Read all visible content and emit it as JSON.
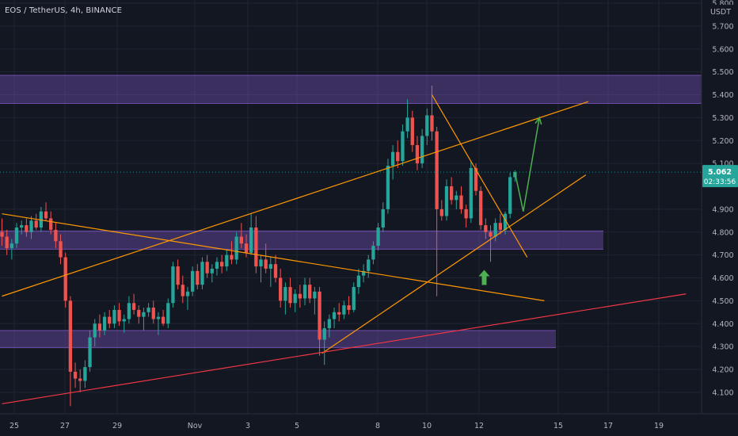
{
  "header": {
    "title": "EOS / TetherUS, 4h, BINANCE"
  },
  "chart_data": {
    "type": "candlestick",
    "symbol": "EOS / TetherUS",
    "interval": "4h",
    "exchange": "BINANCE",
    "y_unit": "USDT",
    "ylim": [
      4.02,
      5.8
    ],
    "y_ticks": [
      "5.800",
      "5.700",
      "5.600",
      "5.500",
      "5.400",
      "5.300",
      "5.200",
      "5.100",
      "4.900",
      "4.800",
      "4.700",
      "4.600",
      "4.500",
      "4.400",
      "4.300",
      "4.200",
      "4.100"
    ],
    "x_ticks": [
      "25",
      "27",
      "29",
      "Nov",
      "3",
      "5",
      "8",
      "10",
      "12",
      "15",
      "17",
      "19"
    ],
    "last_price": "5.062",
    "countdown": "02:33:56",
    "colors": {
      "background": "#131722",
      "grid": "#1f2433",
      "up": "#26a69a",
      "down": "#ef5350",
      "zone": "#7e57c2",
      "trendline": "#ff9800",
      "support_line": "#f23645",
      "projection": "#4caf50",
      "axis_text": "#b2b5be",
      "price_label": "#26a69a"
    },
    "zones": [
      {
        "price_low": 5.362,
        "price_high": 5.485,
        "x_start": "24",
        "x_end": "right-edge"
      },
      {
        "price_low": 4.725,
        "price_high": 4.805,
        "x_start": "24",
        "x_end": "13"
      },
      {
        "price_low": 4.295,
        "price_high": 4.37,
        "x_start": "24",
        "x_end": "15"
      }
    ],
    "trendlines": [
      {
        "role": "lower-channel",
        "from": {
          "t": 0,
          "price": 4.52
        },
        "to": {
          "t": 120,
          "price": 5.37
        }
      },
      {
        "role": "descending-resistance",
        "from": {
          "t": 0,
          "price": 4.88
        },
        "to": {
          "t": 111,
          "price": 4.5
        }
      },
      {
        "role": "rising-support",
        "from": {
          "t": 65.5,
          "price": 4.27
        },
        "to": {
          "t": 119.5,
          "price": 5.05
        }
      },
      {
        "role": "breakdown-line",
        "from": {
          "t": 88,
          "price": 5.4
        },
        "to": {
          "t": 107.5,
          "price": 4.69
        }
      },
      {
        "role": "long-term-support",
        "from": {
          "t": 0,
          "price": 4.05
        },
        "to": {
          "t": 140,
          "price": 4.53
        }
      }
    ],
    "projection_path": [
      {
        "t": 105,
        "price": 5.06
      },
      {
        "t": 106.7,
        "price": 4.89
      },
      {
        "t": 110,
        "price": 5.3
      }
    ],
    "arrow_marker": {
      "t": 98.7,
      "price": 4.6,
      "direction": "up"
    },
    "candles": [
      [
        4.8,
        4.86,
        4.74,
        4.78
      ],
      [
        4.78,
        4.81,
        4.7,
        4.73
      ],
      [
        4.73,
        4.77,
        4.68,
        4.75
      ],
      [
        4.75,
        4.84,
        4.73,
        4.82
      ],
      [
        4.82,
        4.85,
        4.79,
        4.83
      ],
      [
        4.83,
        4.86,
        4.78,
        4.8
      ],
      [
        4.8,
        4.87,
        4.77,
        4.85
      ],
      [
        4.85,
        4.88,
        4.81,
        4.82
      ],
      [
        4.82,
        4.91,
        4.8,
        4.89
      ],
      [
        4.89,
        4.93,
        4.85,
        4.86
      ],
      [
        4.86,
        4.89,
        4.79,
        4.81
      ],
      [
        4.81,
        4.84,
        4.73,
        4.76
      ],
      [
        4.76,
        4.79,
        4.66,
        4.69
      ],
      [
        4.69,
        4.71,
        4.47,
        4.5
      ],
      [
        4.5,
        4.52,
        4.04,
        4.19
      ],
      [
        4.19,
        4.23,
        4.12,
        4.16
      ],
      [
        4.16,
        4.2,
        4.1,
        4.15
      ],
      [
        4.15,
        4.24,
        4.12,
        4.21
      ],
      [
        4.21,
        4.37,
        4.19,
        4.34
      ],
      [
        4.34,
        4.42,
        4.3,
        4.4
      ],
      [
        4.4,
        4.44,
        4.34,
        4.37
      ],
      [
        4.37,
        4.45,
        4.35,
        4.43
      ],
      [
        4.43,
        4.46,
        4.38,
        4.4
      ],
      [
        4.4,
        4.48,
        4.38,
        4.46
      ],
      [
        4.46,
        4.49,
        4.39,
        4.41
      ],
      [
        4.41,
        4.44,
        4.36,
        4.42
      ],
      [
        4.42,
        4.52,
        4.4,
        4.49
      ],
      [
        4.49,
        4.53,
        4.44,
        4.46
      ],
      [
        4.46,
        4.48,
        4.4,
        4.43
      ],
      [
        4.43,
        4.47,
        4.37,
        4.45
      ],
      [
        4.45,
        4.49,
        4.43,
        4.47
      ],
      [
        4.47,
        4.5,
        4.4,
        4.42
      ],
      [
        4.42,
        4.45,
        4.35,
        4.43
      ],
      [
        4.43,
        4.46,
        4.39,
        4.4
      ],
      [
        4.4,
        4.51,
        4.38,
        4.49
      ],
      [
        4.49,
        4.67,
        4.47,
        4.65
      ],
      [
        4.65,
        4.68,
        4.55,
        4.57
      ],
      [
        4.57,
        4.61,
        4.49,
        4.52
      ],
      [
        4.52,
        4.56,
        4.46,
        4.54
      ],
      [
        4.54,
        4.65,
        4.52,
        4.63
      ],
      [
        4.63,
        4.66,
        4.55,
        4.57
      ],
      [
        4.57,
        4.69,
        4.55,
        4.67
      ],
      [
        4.67,
        4.7,
        4.6,
        4.62
      ],
      [
        4.62,
        4.66,
        4.58,
        4.64
      ],
      [
        4.64,
        4.69,
        4.61,
        4.67
      ],
      [
        4.67,
        4.7,
        4.62,
        4.65
      ],
      [
        4.65,
        4.72,
        4.63,
        4.7
      ],
      [
        4.7,
        4.76,
        4.66,
        4.68
      ],
      [
        4.68,
        4.8,
        4.66,
        4.78
      ],
      [
        4.78,
        4.84,
        4.73,
        4.75
      ],
      [
        4.75,
        4.79,
        4.69,
        4.71
      ],
      [
        4.71,
        4.88,
        4.7,
        4.82
      ],
      [
        4.82,
        4.87,
        4.62,
        4.65
      ],
      [
        4.65,
        4.7,
        4.58,
        4.68
      ],
      [
        4.68,
        4.75,
        4.62,
        4.64
      ],
      [
        4.64,
        4.69,
        4.56,
        4.66
      ],
      [
        4.66,
        4.7,
        4.58,
        4.6
      ],
      [
        4.6,
        4.64,
        4.47,
        4.5
      ],
      [
        4.5,
        4.58,
        4.44,
        4.56
      ],
      [
        4.56,
        4.6,
        4.47,
        4.49
      ],
      [
        4.49,
        4.55,
        4.45,
        4.53
      ],
      [
        4.53,
        4.57,
        4.47,
        4.51
      ],
      [
        4.51,
        4.6,
        4.48,
        4.57
      ],
      [
        4.57,
        4.6,
        4.49,
        4.51
      ],
      [
        4.51,
        4.56,
        4.44,
        4.54
      ],
      [
        4.54,
        4.56,
        4.26,
        4.33
      ],
      [
        4.33,
        4.41,
        4.22,
        4.38
      ],
      [
        4.38,
        4.44,
        4.34,
        4.42
      ],
      [
        4.42,
        4.47,
        4.38,
        4.45
      ],
      [
        4.45,
        4.49,
        4.41,
        4.44
      ],
      [
        4.44,
        4.5,
        4.42,
        4.48
      ],
      [
        4.48,
        4.52,
        4.44,
        4.46
      ],
      [
        4.46,
        4.58,
        4.45,
        4.56
      ],
      [
        4.56,
        4.64,
        4.53,
        4.61
      ],
      [
        4.61,
        4.66,
        4.58,
        4.63
      ],
      [
        4.63,
        4.7,
        4.6,
        4.68
      ],
      [
        4.68,
        4.76,
        4.66,
        4.74
      ],
      [
        4.74,
        4.84,
        4.72,
        4.82
      ],
      [
        4.82,
        4.93,
        4.8,
        4.9
      ],
      [
        4.9,
        5.12,
        4.88,
        5.09
      ],
      [
        5.09,
        5.18,
        5.03,
        5.15
      ],
      [
        5.15,
        5.2,
        5.08,
        5.11
      ],
      [
        5.11,
        5.27,
        5.09,
        5.24
      ],
      [
        5.24,
        5.38,
        5.21,
        5.3
      ],
      [
        5.3,
        5.33,
        5.15,
        5.18
      ],
      [
        5.18,
        5.22,
        5.07,
        5.1
      ],
      [
        5.1,
        5.25,
        5.08,
        5.22
      ],
      [
        5.22,
        5.34,
        5.18,
        5.31
      ],
      [
        5.31,
        5.44,
        5.2,
        5.24
      ],
      [
        5.24,
        5.26,
        4.52,
        4.9
      ],
      [
        4.9,
        4.94,
        4.85,
        4.87
      ],
      [
        4.87,
        5.03,
        4.85,
        5.0
      ],
      [
        5.0,
        5.04,
        4.92,
        4.94
      ],
      [
        4.94,
        4.98,
        4.9,
        4.96
      ],
      [
        4.96,
        5.0,
        4.88,
        4.9
      ],
      [
        4.9,
        4.92,
        4.82,
        4.86
      ],
      [
        4.86,
        5.11,
        4.84,
        5.08
      ],
      [
        5.08,
        5.1,
        4.96,
        4.98
      ],
      [
        4.98,
        5.0,
        4.81,
        4.83
      ],
      [
        4.83,
        4.86,
        4.77,
        4.8
      ],
      [
        4.8,
        4.83,
        4.67,
        4.78
      ],
      [
        4.78,
        4.86,
        4.76,
        4.84
      ],
      [
        4.84,
        4.88,
        4.79,
        4.81
      ],
      [
        4.81,
        4.89,
        4.79,
        4.88
      ],
      [
        4.88,
        5.06,
        4.86,
        5.04
      ],
      [
        5.04,
        5.07,
        5.02,
        5.062
      ]
    ]
  }
}
